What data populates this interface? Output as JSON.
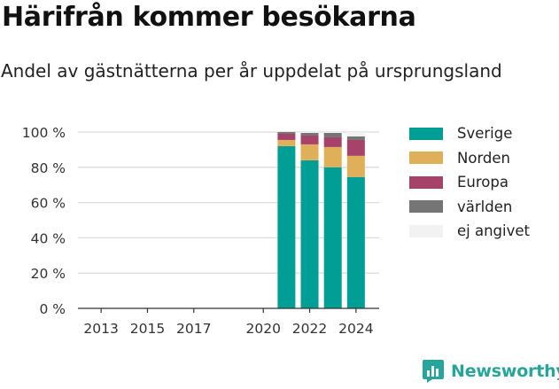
{
  "title": "Härifrån kommer besökarna",
  "subtitle": "Andel av gästnätterna per år uppdelat på ursprungsland",
  "brand": {
    "name": "Newsworthy",
    "icon": "bar-chart-bubble-icon"
  },
  "colors": {
    "Sverige": "#009e94",
    "Norden": "#e0af5a",
    "Europa": "#a7436b",
    "världen": "#757575",
    "ej angivet": "#f2f2f2"
  },
  "chart_data": {
    "type": "bar",
    "stacked": true,
    "x": [
      2021,
      2022,
      2023,
      2024
    ],
    "xticks": [
      2013,
      2015,
      2017,
      2020,
      2022,
      2024
    ],
    "xlim": [
      2012,
      2025
    ],
    "ylim": [
      0,
      100
    ],
    "yticks": [
      0,
      20,
      40,
      60,
      80,
      100
    ],
    "ytick_labels": [
      "0 %",
      "20 %",
      "40 %",
      "60 %",
      "80 %",
      "100 %"
    ],
    "grid": true,
    "legend_position": "right",
    "series": [
      {
        "name": "Sverige",
        "values": [
          92,
          84,
          80,
          74.5
        ]
      },
      {
        "name": "Norden",
        "values": [
          3.5,
          9,
          11.5,
          12
        ]
      },
      {
        "name": "Europa",
        "values": [
          3.5,
          5,
          5.5,
          9
        ]
      },
      {
        "name": "världen",
        "values": [
          1,
          1.5,
          2.5,
          2
        ]
      },
      {
        "name": "ej angivet",
        "values": [
          0,
          0.5,
          0.5,
          2.5
        ]
      }
    ]
  }
}
